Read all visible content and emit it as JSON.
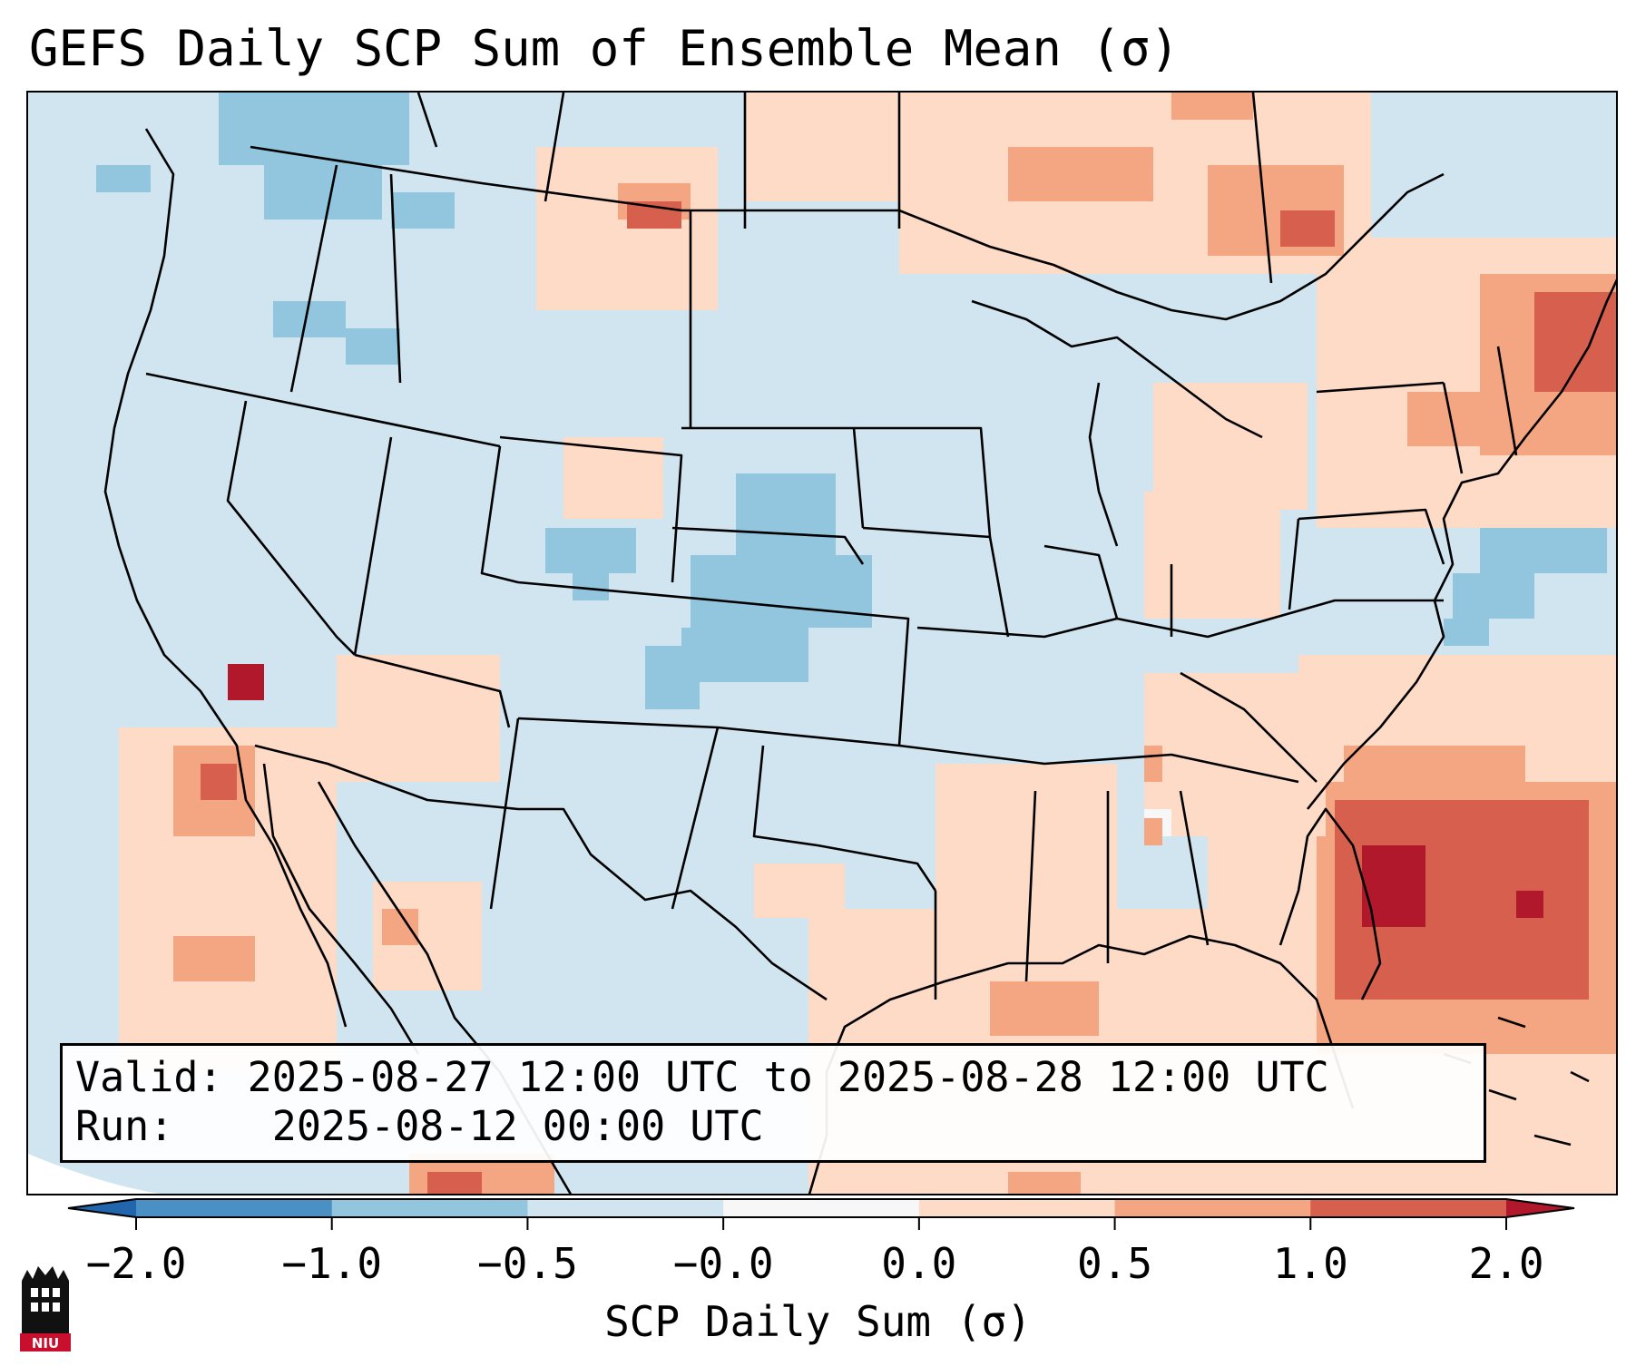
{
  "title": "GEFS Daily SCP Sum of Ensemble Mean (σ)",
  "info": {
    "valid_label": "Valid:",
    "valid_value": "2025-08-27 12:00 UTC to 2025-08-28 12:00 UTC",
    "run_label": "Run:",
    "run_value": "2025-08-12 00:00 UTC"
  },
  "colorbar": {
    "label": "SCP Daily Sum (σ)",
    "ticks": [
      "−2.0",
      "−1.0",
      "−0.5",
      "−0.0",
      "0.0",
      "0.5",
      "1.0",
      "2.0"
    ],
    "colors": [
      "#4a90c4",
      "#92c5de",
      "#d1e5f0",
      "#f7f7f7",
      "#fddbc7",
      "#f4a582",
      "#d6604d"
    ],
    "extend_low_color": "#2166ac",
    "extend_high_color": "#b2182b"
  },
  "logo": {
    "text": "NIU"
  },
  "map": {
    "background_color": "#d1e5f0",
    "outside_color": "#ffffff",
    "regions": [
      {
        "name": "pacific-northwest-negative",
        "category": -1
      },
      {
        "name": "central-plains-negative",
        "category": -1
      },
      {
        "name": "northeast-positive",
        "category": 1
      },
      {
        "name": "atlantic-positive",
        "category": 2
      },
      {
        "name": "gulf-positive",
        "category": 1
      },
      {
        "name": "california-coast-positive",
        "category": 2
      }
    ]
  }
}
